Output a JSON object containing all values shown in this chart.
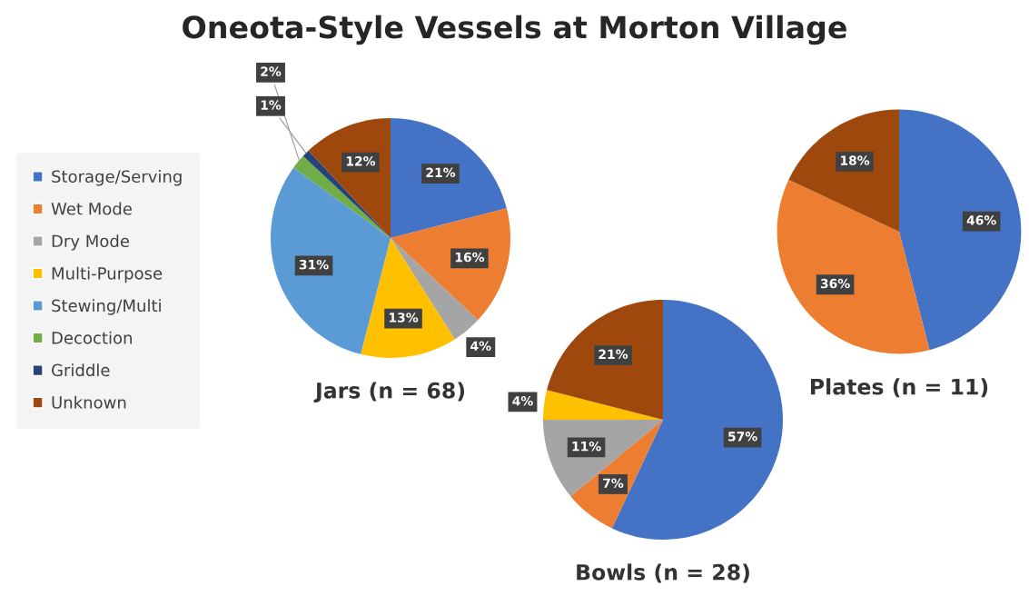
{
  "chart_data": [
    {
      "type": "pie",
      "title": "Oneota-Style Vessels at Morton Village",
      "xlabel": "Jars (n = 68)",
      "categories": [
        "Storage/Serving",
        "Wet Mode",
        "Dry Mode",
        "Multi-Purpose",
        "Stewing/Multi",
        "Decoction",
        "Griddle",
        "Unknown"
      ],
      "values": [
        21,
        16,
        4,
        13,
        31,
        2,
        1,
        12
      ],
      "value_labels": [
        "21%",
        "16%",
        "4%",
        "13%",
        "31%",
        "2%",
        "1%",
        "12%"
      ],
      "colors": [
        "#4472c4",
        "#ed7d31",
        "#a5a5a5",
        "#ffc000",
        "#5b9bd5",
        "#70ad47",
        "#264478",
        "#9e480e"
      ],
      "legend": "left"
    },
    {
      "type": "pie",
      "xlabel": "Bowls (n = 28)",
      "categories": [
        null,
        null,
        null,
        null,
        null
      ],
      "values": [
        57,
        7,
        11,
        4,
        21
      ],
      "value_labels": [
        "57%",
        "7%",
        "11%",
        "4%",
        "21%"
      ],
      "colors": [
        "#4472c4",
        "#ed7d31",
        "#a5a5a5",
        "#ffc000",
        "#9e480e"
      ]
    },
    {
      "type": "pie",
      "xlabel": "Plates (n = 11)",
      "categories": [
        null,
        null,
        null
      ],
      "values": [
        46,
        36,
        18
      ],
      "value_labels": [
        "46%",
        "36%",
        "18%"
      ],
      "colors": [
        "#4472c4",
        "#ed7d31",
        "#9e480e"
      ]
    }
  ]
}
